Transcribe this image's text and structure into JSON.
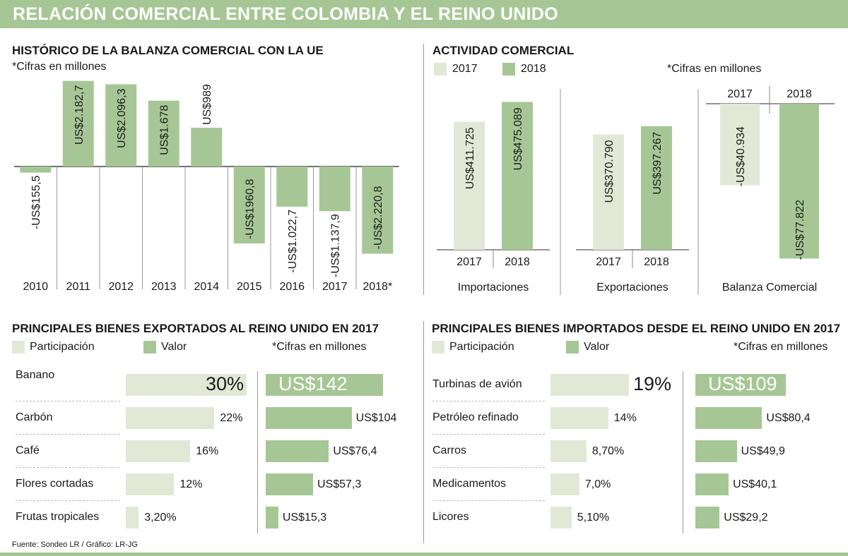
{
  "header": {
    "title": "RELACIÓN COMERCIAL ENTRE COLOMBIA Y EL REINO UNIDO"
  },
  "colors": {
    "light": "#e1e9d6",
    "dark": "#a6c795",
    "header": "#a6c795"
  },
  "historico": {
    "title": "HISTÓRICO DE LA BALANZA COMERCIAL CON LA UE",
    "note": "*Cifras en millones"
  },
  "actividad": {
    "title": "ACTIVIDAD COMERCIAL",
    "note": "*Cifras en millones",
    "legend": [
      "2017",
      "2018"
    ]
  },
  "exportados": {
    "title": "PRINCIPALES BIENES EXPORTADOS AL REINO UNIDO EN 2017",
    "legend_participacion": "Participación",
    "legend_valor": "Valor",
    "note": "*Cifras en millones",
    "items": [
      {
        "name": "Banano",
        "share_label": "30%",
        "share": 30,
        "value_label": "US$142",
        "value": 142
      },
      {
        "name": "Carbón",
        "share_label": "22%",
        "share": 22,
        "value_label": "US$104",
        "value": 104
      },
      {
        "name": "Café",
        "share_label": "16%",
        "share": 16,
        "value_label": "US$76,4",
        "value": 76.4
      },
      {
        "name": "Flores cortadas",
        "share_label": "12%",
        "share": 12,
        "value_label": "US$57,3",
        "value": 57.3
      },
      {
        "name": "Frutas tropicales",
        "share_label": "3,20%",
        "share": 3.2,
        "value_label": "US$15,3",
        "value": 15.3
      }
    ]
  },
  "importados": {
    "title": "PRINCIPALES BIENES IMPORTADOS DESDE EL REINO UNIDO EN 2017",
    "legend_participacion": "Participación",
    "legend_valor": "Valor",
    "note": "*Cifras en millones",
    "items": [
      {
        "name": "Turbinas de avión",
        "share_label": "19%",
        "share": 19,
        "value_label": "US$109",
        "value": 109
      },
      {
        "name": "Petróleo refinado",
        "share_label": "14%",
        "share": 14,
        "value_label": "US$80,4",
        "value": 80.4
      },
      {
        "name": "Carros",
        "share_label": "8,70%",
        "share": 8.7,
        "value_label": "US$49,9",
        "value": 49.9
      },
      {
        "name": "Medicamentos",
        "share_label": "7,0%",
        "share": 7.0,
        "value_label": "US$40,1",
        "value": 40.1
      },
      {
        "name": "Licores",
        "share_label": "5,10%",
        "share": 5.1,
        "value_label": "US$29,2",
        "value": 29.2
      }
    ]
  },
  "source": "Fuente: Sondeo LR / Gráfico: LR-JG",
  "chart_data": [
    {
      "type": "bar",
      "title": "HISTÓRICO DE LA BALANZA COMERCIAL CON LA UE",
      "categories": [
        "2010",
        "2011",
        "2012",
        "2013",
        "2014",
        "2015",
        "2016",
        "2017",
        "2018*"
      ],
      "values": [
        -155.5,
        2182.7,
        2096.3,
        1678,
        989,
        -1960.8,
        -1022.7,
        -1137.9,
        -2220.8
      ],
      "labels": [
        "-US$155,5",
        "US$2.182,7",
        "US$2.096,3",
        "US$1.678",
        "US$989",
        "-US$1960,8",
        "-US$1.022,7",
        "-US$1.137,9",
        "-US$2.220,8"
      ],
      "ylabel": "*Cifras en millones"
    },
    {
      "type": "bar",
      "title": "ACTIVIDAD COMERCIAL",
      "groups": [
        "Importaciones",
        "Exportaciones",
        "Balanza Comercial"
      ],
      "categories": [
        "2017",
        "2018"
      ],
      "series": [
        {
          "name": "Importaciones",
          "values": [
            411725,
            475089
          ],
          "labels": [
            "US$411.725",
            "US$475.089"
          ]
        },
        {
          "name": "Exportaciones",
          "values": [
            370790,
            397267
          ],
          "labels": [
            "US$370.790",
            "US$397.267"
          ]
        },
        {
          "name": "Balanza Comercial",
          "values": [
            -40934,
            -77822
          ],
          "labels": [
            "-US$40.934",
            "-US$77.822"
          ]
        }
      ]
    },
    {
      "type": "bar",
      "title": "PRINCIPALES BIENES EXPORTADOS AL REINO UNIDO EN 2017",
      "categories": [
        "Banano",
        "Carbón",
        "Café",
        "Flores cortadas",
        "Frutas tropicales"
      ],
      "series": [
        {
          "name": "Participación",
          "values": [
            30,
            22,
            16,
            12,
            3.2
          ]
        },
        {
          "name": "Valor",
          "values": [
            142,
            104,
            76.4,
            57.3,
            15.3
          ]
        }
      ]
    },
    {
      "type": "bar",
      "title": "PRINCIPALES BIENES IMPORTADOS DESDE EL REINO UNIDO EN 2017",
      "categories": [
        "Turbinas de avión",
        "Petróleo refinado",
        "Carros",
        "Medicamentos",
        "Licores"
      ],
      "series": [
        {
          "name": "Participación",
          "values": [
            19,
            14,
            8.7,
            7.0,
            5.1
          ]
        },
        {
          "name": "Valor",
          "values": [
            109,
            80.4,
            49.9,
            40.1,
            29.2
          ]
        }
      ]
    }
  ]
}
